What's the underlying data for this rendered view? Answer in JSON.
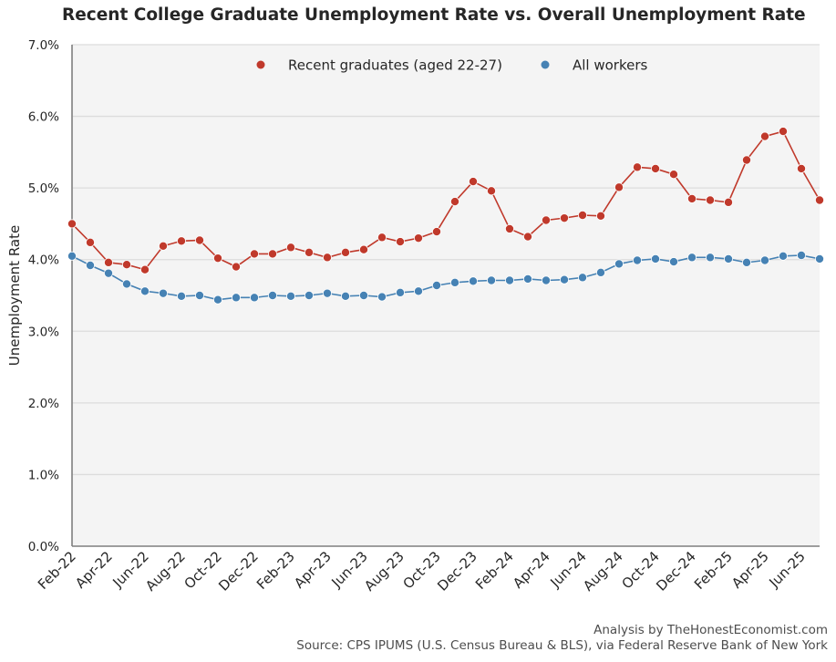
{
  "title": "Recent College Graduate Unemployment Rate vs. Overall Unemployment Rate",
  "footer": {
    "line1": "Analysis by TheHonestEconomist.com",
    "line2": "Source: CPS IPUMS (U.S. Census Bureau & BLS), via Federal Reserve Bank of New York"
  },
  "chart_data": {
    "type": "line",
    "title": "Recent College Graduate Unemployment Rate vs. Overall Unemployment Rate",
    "xlabel": "",
    "ylabel": "Unemployment Rate",
    "ylim": [
      0,
      7
    ],
    "yticks": [
      0,
      1,
      2,
      3,
      4,
      5,
      6,
      7
    ],
    "ytick_labels": [
      "0.0%",
      "1.0%",
      "2.0%",
      "3.0%",
      "4.0%",
      "5.0%",
      "6.0%",
      "7.0%"
    ],
    "grid": true,
    "legend_position": "top-center",
    "x": [
      "Feb-22",
      "Mar-22",
      "Apr-22",
      "May-22",
      "Jun-22",
      "Jul-22",
      "Aug-22",
      "Sep-22",
      "Oct-22",
      "Nov-22",
      "Dec-22",
      "Jan-23",
      "Feb-23",
      "Mar-23",
      "Apr-23",
      "May-23",
      "Jun-23",
      "Jul-23",
      "Aug-23",
      "Sep-23",
      "Oct-23",
      "Nov-23",
      "Dec-23",
      "Jan-24",
      "Feb-24",
      "Mar-24",
      "Apr-24",
      "May-24",
      "Jun-24",
      "Jul-24",
      "Aug-24",
      "Sep-24",
      "Oct-24",
      "Nov-24",
      "Dec-24",
      "Jan-25",
      "Feb-25",
      "Mar-25",
      "Apr-25",
      "May-25",
      "Jun-25",
      "Jul-25"
    ],
    "xtick_labels": [
      "Feb-22",
      "Apr-22",
      "Jun-22",
      "Aug-22",
      "Oct-22",
      "Dec-22",
      "Feb-23",
      "Apr-23",
      "Jun-23",
      "Aug-23",
      "Oct-23",
      "Dec-23",
      "Feb-24",
      "Apr-24",
      "Jun-24",
      "Aug-24",
      "Oct-24",
      "Dec-24",
      "Feb-25",
      "Apr-25",
      "Jun-25"
    ],
    "series": [
      {
        "name": "Recent graduates (aged 22-27)",
        "color": "#c0392b",
        "values": [
          4.5,
          4.24,
          3.96,
          3.93,
          3.86,
          4.19,
          4.26,
          4.27,
          4.02,
          3.9,
          4.08,
          4.08,
          4.17,
          4.1,
          4.03,
          4.1,
          4.14,
          4.31,
          4.25,
          4.3,
          4.39,
          4.81,
          5.09,
          4.96,
          4.43,
          4.32,
          4.55,
          4.58,
          4.62,
          4.61,
          5.01,
          5.29,
          5.27,
          5.19,
          4.85,
          4.83,
          4.8,
          5.39,
          5.72,
          5.79,
          5.27,
          4.83
        ]
      },
      {
        "name": "All workers",
        "color": "#4682b4",
        "values": [
          4.05,
          3.92,
          3.81,
          3.66,
          3.56,
          3.53,
          3.49,
          3.5,
          3.44,
          3.47,
          3.47,
          3.5,
          3.49,
          3.5,
          3.53,
          3.49,
          3.5,
          3.48,
          3.54,
          3.56,
          3.64,
          3.68,
          3.7,
          3.71,
          3.71,
          3.73,
          3.71,
          3.72,
          3.75,
          3.82,
          3.94,
          3.99,
          4.01,
          3.97,
          4.03,
          4.03,
          4.01,
          3.96,
          3.99,
          4.05,
          4.06,
          4.01
        ]
      }
    ]
  }
}
